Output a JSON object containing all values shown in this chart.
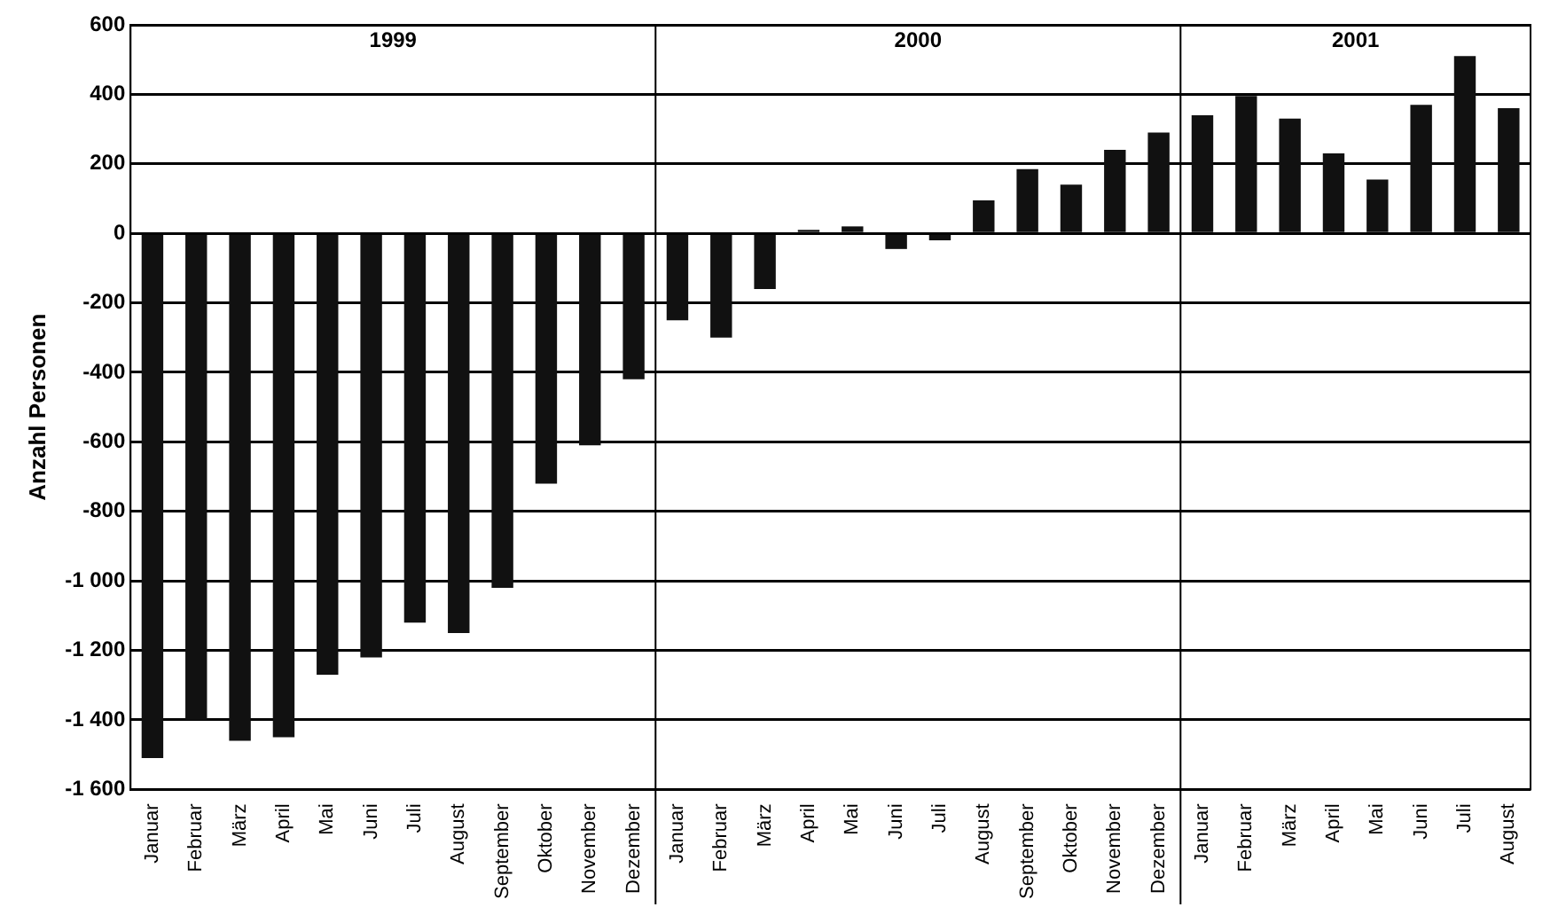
{
  "chart_data": {
    "type": "bar",
    "ylabel": "Anzahl Personen",
    "annotations": [
      "1999",
      "2000",
      "2001"
    ],
    "categories": [
      "Januar",
      "Februar",
      "März",
      "April",
      "Mai",
      "Juni",
      "Juli",
      "August",
      "September",
      "Oktober",
      "November",
      "Dezember",
      "Januar",
      "Februar",
      "März",
      "April",
      "Mai",
      "Juni",
      "Juli",
      "August",
      "September",
      "Oktober",
      "November",
      "Dezember",
      "Januar",
      "Februar",
      "März",
      "April",
      "Mai",
      "Juni",
      "Juli",
      "August"
    ],
    "values": [
      -1510,
      -1400,
      -1460,
      -1450,
      -1270,
      -1220,
      -1120,
      -1150,
      -1020,
      -720,
      -610,
      -420,
      -250,
      -300,
      -160,
      10,
      20,
      -45,
      -20,
      95,
      185,
      140,
      240,
      290,
      340,
      395,
      330,
      230,
      155,
      370,
      510,
      360
    ],
    "color": "#111111",
    "ylim": [
      -1600,
      600
    ],
    "yticks": [
      {
        "value": -1600,
        "label": "-1 600"
      },
      {
        "value": -1400,
        "label": "-1 400"
      },
      {
        "value": -1200,
        "label": "-1 200"
      },
      {
        "value": -1000,
        "label": "-1 000"
      },
      -800,
      -600,
      -400,
      -200,
      0,
      200,
      400,
      600
    ],
    "grid": "y",
    "legend": false
  }
}
